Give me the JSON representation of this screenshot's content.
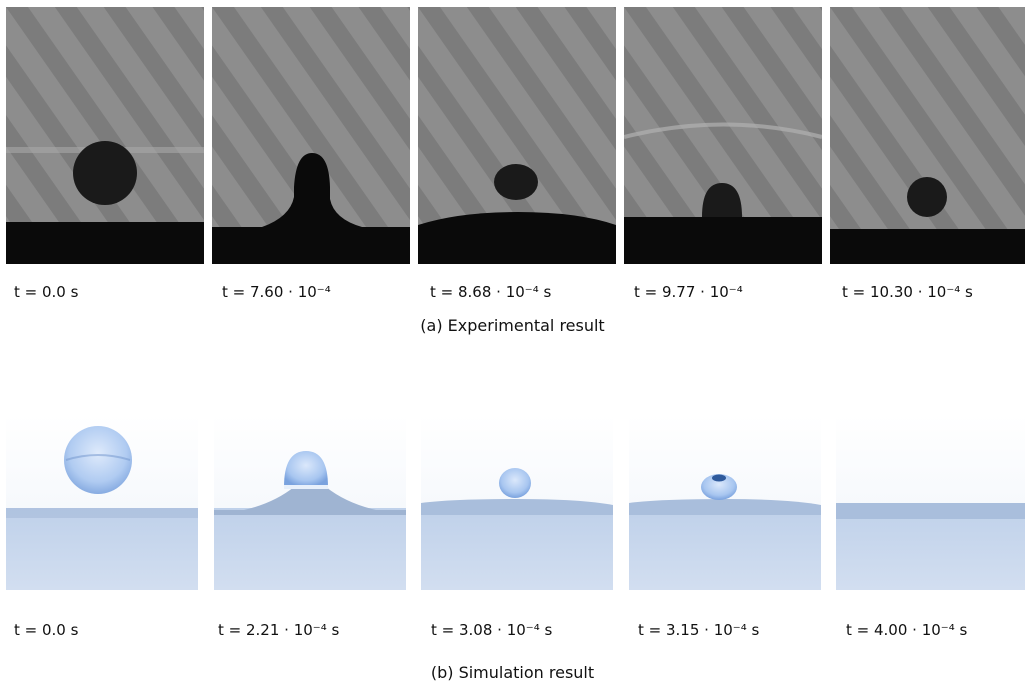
{
  "experimental": {
    "caption": "(a) Experimental result",
    "times": [
      "t = 0.0 s",
      "t = 7.60 · 10⁻⁴",
      "t = 8.68 · 10⁻⁴ s",
      "t = 9.77 · 10⁻⁴",
      "t = 10.30 · 10⁻⁴ s"
    ]
  },
  "simulation": {
    "caption": "(b) Simulation result",
    "times": [
      "t = 0.0 s",
      "t = 2.21 · 10⁻⁴ s",
      "t = 3.08 · 10⁻⁴ s",
      "t = 3.15 · 10⁻⁴ s",
      "t = 4.00 · 10⁻⁴ s"
    ]
  }
}
